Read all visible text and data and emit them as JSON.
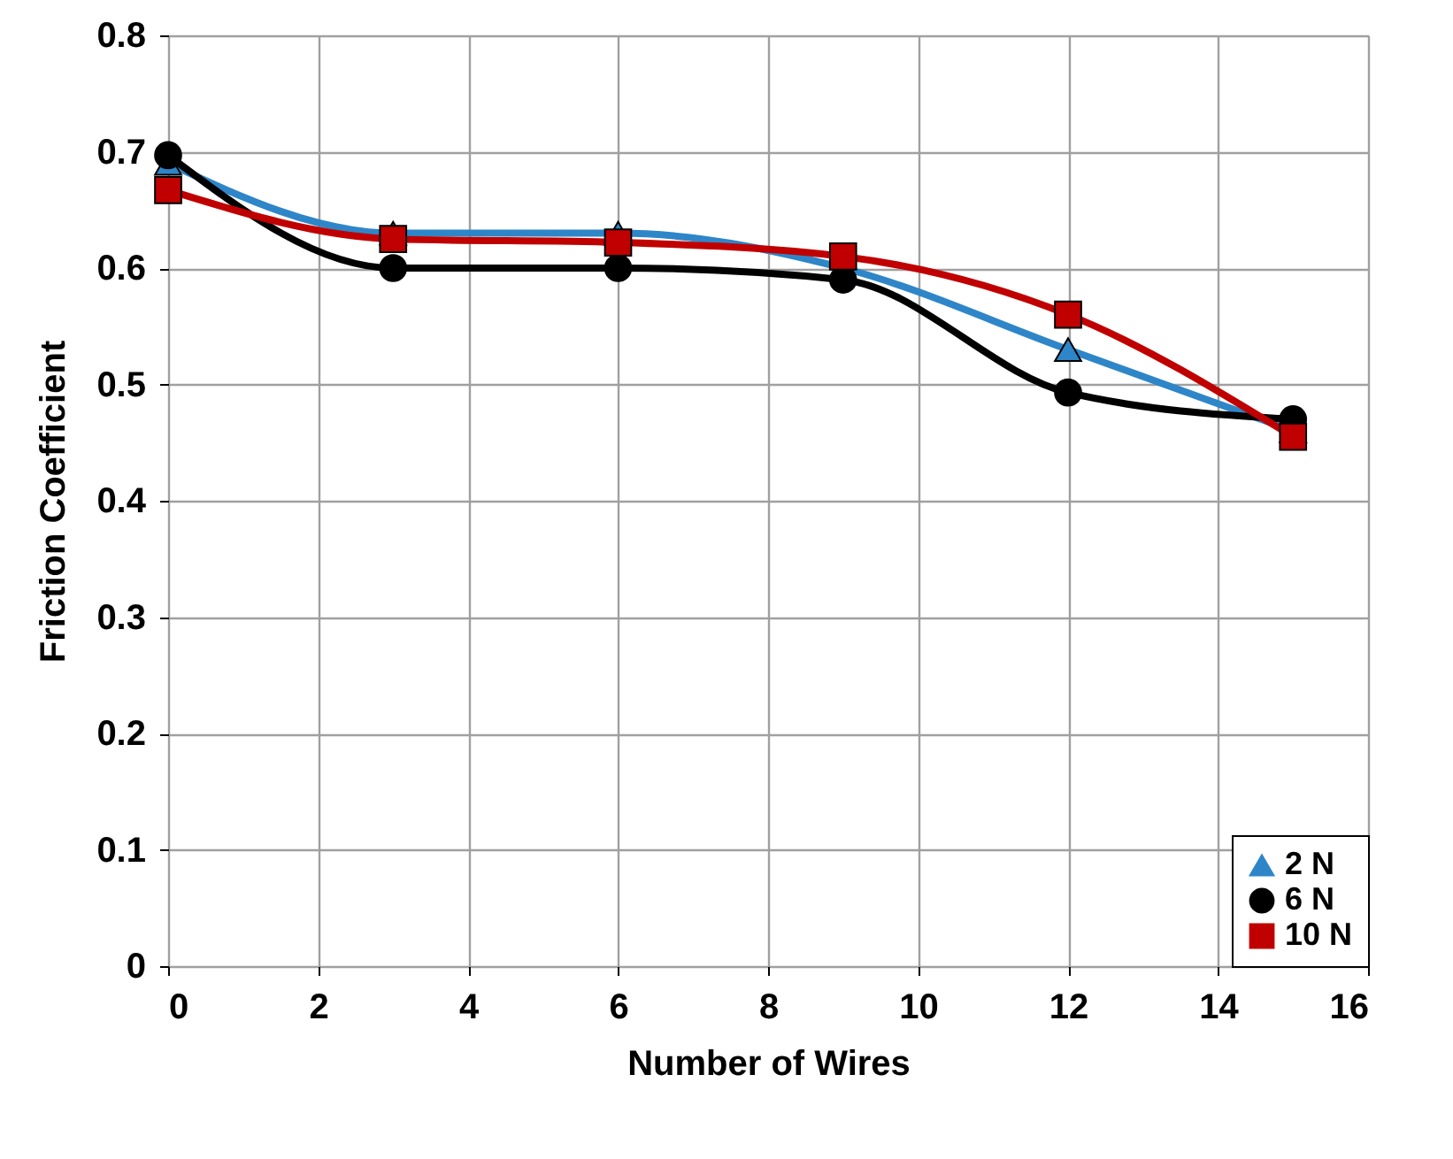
{
  "chart_data": {
    "type": "line",
    "xlabel": "Number of Wires",
    "ylabel": "Friction Coefficient",
    "x": [
      0,
      3,
      6,
      9,
      12,
      15
    ],
    "series": [
      {
        "name": "2  N",
        "color": "#2e86c8",
        "marker": "triangle",
        "values": [
          0.69,
          0.63,
          0.63,
          0.6,
          0.53,
          0.46
        ]
      },
      {
        "name": "6  N",
        "color": "#000000",
        "marker": "circle",
        "values": [
          0.697,
          0.6,
          0.6,
          0.59,
          0.493,
          0.47
        ]
      },
      {
        "name": "10 N",
        "color": "#c00000",
        "marker": "square",
        "values": [
          0.667,
          0.625,
          0.622,
          0.61,
          0.56,
          0.455
        ]
      }
    ],
    "xlim": [
      0,
      16
    ],
    "xticks": [
      0,
      2,
      4,
      6,
      8,
      10,
      12,
      14,
      16
    ],
    "ylim": [
      0,
      0.8
    ],
    "yticks": [
      0,
      0.1,
      0.2,
      0.3,
      0.4,
      0.5,
      0.6,
      0.7,
      0.8
    ],
    "grid": true,
    "legend": "bottom right",
    "line_style": "solid"
  }
}
